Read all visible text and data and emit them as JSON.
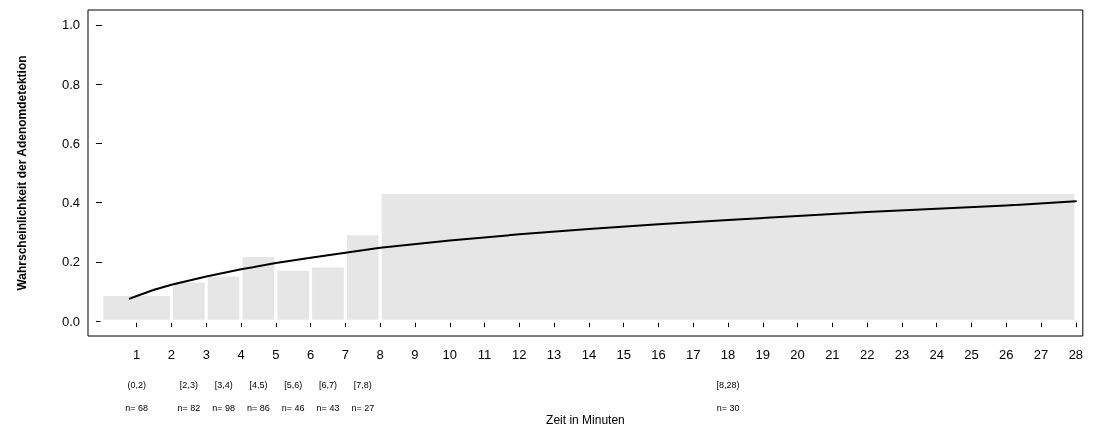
{
  "chart_data": {
    "type": "histogram",
    "ylabel": "Wahrscheinlichkeit der Adenomdetektion",
    "xlabel": "Zeit in Minuten",
    "bins": [
      0,
      2,
      3,
      4,
      5,
      6,
      7,
      8,
      28
    ],
    "values": [
      0.09,
      0.136,
      0.156,
      0.222,
      0.175,
      0.186,
      0.295,
      0.434
    ],
    "color": "#e6e6e6",
    "series": [
      {
        "type": "line",
        "color": "#000000",
        "x": [
          0.8,
          1,
          1.5,
          2,
          3,
          4,
          5,
          6,
          7,
          8,
          10,
          12,
          14,
          16,
          18,
          20,
          22,
          24,
          26,
          28
        ],
        "values": [
          0.076,
          0.085,
          0.106,
          0.123,
          0.151,
          0.175,
          0.196,
          0.214,
          0.231,
          0.248,
          0.272,
          0.293,
          0.311,
          0.327,
          0.341,
          0.355,
          0.368,
          0.379,
          0.39,
          0.405
        ]
      }
    ],
    "annotations": [
      "(0,2)",
      "[2,3)",
      "[3,4)",
      "[4,5)",
      "[5,6)",
      "[6,7)",
      "[7,8)",
      "[8,28)",
      "n= 68",
      "n= 82",
      "n= 98",
      "n= 86",
      "n= 46",
      "n= 43",
      "n= 27",
      "n= 30"
    ],
    "xlim": [
      -0.4,
      28.2
    ],
    "xticks": [
      1,
      2,
      3,
      4,
      5,
      6,
      7,
      8,
      9,
      10,
      11,
      12,
      13,
      14,
      15,
      16,
      17,
      18,
      19,
      20,
      21,
      22,
      23,
      24,
      25,
      26,
      27,
      28
    ],
    "ylim": [
      -0.05,
      1.05
    ],
    "yticks": [
      {
        "value": 0,
        "label": "0.0"
      },
      0.2,
      0.4,
      0.6,
      0.8,
      {
        "value": 1,
        "label": "1.0"
      }
    ],
    "grid": false,
    "marker": "none",
    "line_style": "solid"
  }
}
